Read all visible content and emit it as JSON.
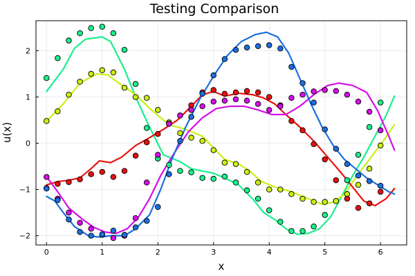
{
  "chart_data": {
    "type": "line",
    "title": "Testing Comparison",
    "xlabel": "x",
    "ylabel": "u(x)",
    "xlim": [
      -0.19,
      6.47
    ],
    "ylim": [
      -2.2,
      2.65
    ],
    "xticks": [
      0,
      1,
      2,
      3,
      4,
      5,
      6
    ],
    "yticks": [
      -2,
      -1,
      0,
      1,
      2
    ],
    "grid": true,
    "legend": "none",
    "colors": {
      "blue": "#1a6fe0",
      "red": "#e8100e",
      "magenta": "#d60ee8",
      "green": "#18f08a",
      "yellow": "#c8f010"
    },
    "series": [
      {
        "color_key": "green",
        "kind": "line",
        "points": [
          [
            0,
            1.12
          ],
          [
            0.3,
            1.6
          ],
          [
            0.5,
            2.05
          ],
          [
            0.7,
            2.25
          ],
          [
            1.0,
            2.3
          ],
          [
            1.15,
            2.2
          ],
          [
            1.4,
            1.6
          ],
          [
            1.6,
            1.0
          ],
          [
            1.85,
            0.35
          ],
          [
            2.1,
            -0.25
          ],
          [
            2.4,
            -0.4
          ],
          [
            2.6,
            -0.55
          ],
          [
            2.8,
            -0.6
          ],
          [
            3.0,
            -0.65
          ],
          [
            3.2,
            -0.75
          ],
          [
            3.45,
            -0.9
          ],
          [
            3.7,
            -1.2
          ],
          [
            3.9,
            -1.5
          ],
          [
            4.1,
            -1.65
          ],
          [
            4.3,
            -1.85
          ],
          [
            4.5,
            -1.97
          ],
          [
            4.7,
            -1.95
          ],
          [
            4.9,
            -1.85
          ],
          [
            5.1,
            -1.6
          ],
          [
            5.3,
            -1.15
          ],
          [
            5.5,
            -0.7
          ],
          [
            5.7,
            -0.3
          ],
          [
            5.9,
            0.15
          ],
          [
            6.1,
            0.6
          ],
          [
            6.25,
            1.02
          ]
        ]
      },
      {
        "color_key": "yellow",
        "kind": "line",
        "points": [
          [
            0,
            0.48
          ],
          [
            0.3,
            0.85
          ],
          [
            0.6,
            1.3
          ],
          [
            0.9,
            1.5
          ],
          [
            1.1,
            1.48
          ],
          [
            1.3,
            1.3
          ],
          [
            1.6,
            1.05
          ],
          [
            1.9,
            0.7
          ],
          [
            2.2,
            0.4
          ],
          [
            2.5,
            0.3
          ],
          [
            2.8,
            0.15
          ],
          [
            3.0,
            -0.1
          ],
          [
            3.2,
            -0.35
          ],
          [
            3.45,
            -0.45
          ],
          [
            3.65,
            -0.6
          ],
          [
            3.85,
            -0.82
          ],
          [
            4.1,
            -0.95
          ],
          [
            4.4,
            -1.05
          ],
          [
            4.7,
            -1.2
          ],
          [
            4.95,
            -1.32
          ],
          [
            5.15,
            -1.28
          ],
          [
            5.35,
            -1.1
          ],
          [
            5.55,
            -0.75
          ],
          [
            5.8,
            -0.35
          ],
          [
            6.05,
            0.05
          ],
          [
            6.25,
            0.4
          ]
        ]
      },
      {
        "color_key": "red",
        "kind": "line",
        "points": [
          [
            0,
            -0.9
          ],
          [
            0.2,
            -0.83
          ],
          [
            0.4,
            -0.8
          ],
          [
            0.6,
            -0.75
          ],
          [
            0.8,
            -0.55
          ],
          [
            0.95,
            -0.38
          ],
          [
            1.15,
            -0.42
          ],
          [
            1.35,
            -0.3
          ],
          [
            1.6,
            -0.05
          ],
          [
            1.85,
            0.12
          ],
          [
            2.1,
            0.3
          ],
          [
            2.35,
            0.5
          ],
          [
            2.6,
            0.8
          ],
          [
            2.8,
            1.05
          ],
          [
            3.0,
            1.12
          ],
          [
            3.2,
            1.02
          ],
          [
            3.45,
            1.08
          ],
          [
            3.7,
            1.05
          ],
          [
            3.9,
            0.98
          ],
          [
            4.1,
            0.85
          ],
          [
            4.3,
            0.62
          ],
          [
            4.55,
            0.35
          ],
          [
            4.8,
            0.05
          ],
          [
            5.05,
            -0.3
          ],
          [
            5.3,
            -0.65
          ],
          [
            5.5,
            -0.95
          ],
          [
            5.7,
            -1.25
          ],
          [
            5.9,
            -1.35
          ],
          [
            6.1,
            -1.2
          ],
          [
            6.25,
            -0.98
          ]
        ]
      },
      {
        "color_key": "magenta",
        "kind": "line",
        "points": [
          [
            0,
            -0.72
          ],
          [
            0.2,
            -1.05
          ],
          [
            0.4,
            -1.4
          ],
          [
            0.65,
            -1.65
          ],
          [
            0.85,
            -1.82
          ],
          [
            1.05,
            -1.92
          ],
          [
            1.25,
            -1.95
          ],
          [
            1.45,
            -1.85
          ],
          [
            1.65,
            -1.6
          ],
          [
            1.85,
            -1.2
          ],
          [
            2.05,
            -0.7
          ],
          [
            2.3,
            -0.2
          ],
          [
            2.55,
            0.25
          ],
          [
            2.8,
            0.55
          ],
          [
            3.05,
            0.75
          ],
          [
            3.3,
            0.8
          ],
          [
            3.55,
            0.8
          ],
          [
            3.8,
            0.72
          ],
          [
            4.05,
            0.62
          ],
          [
            4.3,
            0.62
          ],
          [
            4.55,
            0.8
          ],
          [
            4.8,
            1.05
          ],
          [
            5.05,
            1.25
          ],
          [
            5.25,
            1.3
          ],
          [
            5.5,
            1.25
          ],
          [
            5.75,
            1.1
          ],
          [
            5.95,
            0.7
          ],
          [
            6.15,
            0.15
          ],
          [
            6.25,
            -0.15
          ]
        ]
      },
      {
        "color_key": "blue",
        "kind": "line",
        "points": [
          [
            0,
            -1.15
          ],
          [
            0.15,
            -1.25
          ],
          [
            0.3,
            -1.5
          ],
          [
            0.5,
            -1.8
          ],
          [
            0.75,
            -2.0
          ],
          [
            0.95,
            -2.03
          ],
          [
            1.15,
            -2.0
          ],
          [
            1.4,
            -2.0
          ],
          [
            1.6,
            -1.85
          ],
          [
            1.85,
            -1.55
          ],
          [
            2.05,
            -1.0
          ],
          [
            2.25,
            -0.35
          ],
          [
            2.5,
            0.35
          ],
          [
            2.75,
            0.95
          ],
          [
            3.0,
            1.45
          ],
          [
            3.25,
            1.9
          ],
          [
            3.5,
            2.2
          ],
          [
            3.75,
            2.35
          ],
          [
            3.95,
            2.4
          ],
          [
            4.15,
            2.3
          ],
          [
            4.35,
            1.95
          ],
          [
            4.55,
            1.4
          ],
          [
            4.75,
            0.85
          ],
          [
            4.95,
            0.35
          ],
          [
            5.15,
            -0.05
          ],
          [
            5.35,
            -0.35
          ],
          [
            5.55,
            -0.55
          ],
          [
            5.75,
            -0.75
          ],
          [
            5.95,
            -0.9
          ],
          [
            6.15,
            -1.05
          ],
          [
            6.25,
            -1.1
          ]
        ]
      },
      {
        "color_key": "green",
        "kind": "scatter",
        "points": [
          [
            0,
            1.41
          ],
          [
            0.2,
            1.84
          ],
          [
            0.4,
            2.22
          ],
          [
            0.6,
            2.38
          ],
          [
            0.8,
            2.49
          ],
          [
            1.0,
            2.52
          ],
          [
            1.2,
            2.38
          ],
          [
            1.4,
            2.02
          ],
          [
            1.6,
            1.28
          ],
          [
            1.8,
            0.33
          ],
          [
            2.0,
            -0.33
          ],
          [
            2.2,
            -0.47
          ],
          [
            2.4,
            -0.6
          ],
          [
            2.6,
            -0.63
          ],
          [
            2.8,
            -0.75
          ],
          [
            3.0,
            -0.77
          ],
          [
            3.2,
            -0.72
          ],
          [
            3.4,
            -0.85
          ],
          [
            3.6,
            -1.02
          ],
          [
            3.8,
            -1.2
          ],
          [
            4.0,
            -1.45
          ],
          [
            4.2,
            -1.7
          ],
          [
            4.4,
            -1.9
          ],
          [
            4.6,
            -1.9
          ],
          [
            4.8,
            -1.8
          ],
          [
            5.0,
            -1.55
          ],
          [
            5.2,
            -1.25
          ],
          [
            5.4,
            -0.8
          ],
          [
            5.6,
            -0.25
          ],
          [
            5.8,
            0.35
          ],
          [
            6.0,
            0.88
          ]
        ]
      },
      {
        "color_key": "yellow",
        "kind": "scatter",
        "points": [
          [
            0,
            0.48
          ],
          [
            0.2,
            0.69
          ],
          [
            0.4,
            1.05
          ],
          [
            0.6,
            1.33
          ],
          [
            0.8,
            1.5
          ],
          [
            1.0,
            1.58
          ],
          [
            1.2,
            1.53
          ],
          [
            1.4,
            1.2
          ],
          [
            1.6,
            1.0
          ],
          [
            1.8,
            0.98
          ],
          [
            2.0,
            0.72
          ],
          [
            2.2,
            0.45
          ],
          [
            2.4,
            0.22
          ],
          [
            2.6,
            0.12
          ],
          [
            2.8,
            0.05
          ],
          [
            3.0,
            -0.15
          ],
          [
            3.2,
            -0.42
          ],
          [
            3.4,
            -0.45
          ],
          [
            3.6,
            -0.62
          ],
          [
            3.8,
            -0.85
          ],
          [
            4.0,
            -1.0
          ],
          [
            4.2,
            -1.0
          ],
          [
            4.4,
            -1.1
          ],
          [
            4.6,
            -1.2
          ],
          [
            4.8,
            -1.27
          ],
          [
            5.0,
            -1.27
          ],
          [
            5.2,
            -1.25
          ],
          [
            5.4,
            -1.1
          ],
          [
            5.6,
            -0.9
          ],
          [
            5.8,
            -0.55
          ],
          [
            6.0,
            -0.05
          ]
        ]
      },
      {
        "color_key": "red",
        "kind": "scatter",
        "points": [
          [
            0,
            -0.97
          ],
          [
            0.2,
            -0.88
          ],
          [
            0.4,
            -0.84
          ],
          [
            0.6,
            -0.78
          ],
          [
            0.8,
            -0.67
          ],
          [
            1.0,
            -0.62
          ],
          [
            1.2,
            -0.73
          ],
          [
            1.4,
            -0.6
          ],
          [
            1.6,
            -0.27
          ],
          [
            1.8,
            0.02
          ],
          [
            2.0,
            0.2
          ],
          [
            2.2,
            0.42
          ],
          [
            2.4,
            0.6
          ],
          [
            2.6,
            0.82
          ],
          [
            2.8,
            1.1
          ],
          [
            3.0,
            1.15
          ],
          [
            3.2,
            1.07
          ],
          [
            3.4,
            1.1
          ],
          [
            3.6,
            1.13
          ],
          [
            3.8,
            1.1
          ],
          [
            4.0,
            1.0
          ],
          [
            4.2,
            0.82
          ],
          [
            4.4,
            0.48
          ],
          [
            4.6,
            0.28
          ],
          [
            4.8,
            -0.02
          ],
          [
            5.0,
            -0.35
          ],
          [
            5.2,
            -0.8
          ],
          [
            5.4,
            -1.2
          ],
          [
            5.6,
            -1.4
          ],
          [
            5.8,
            -1.3
          ],
          [
            6.0,
            -1.05
          ]
        ]
      },
      {
        "color_key": "magenta",
        "kind": "scatter",
        "points": [
          [
            0,
            -0.73
          ],
          [
            0.2,
            -1.2
          ],
          [
            0.4,
            -1.5
          ],
          [
            0.6,
            -1.72
          ],
          [
            0.8,
            -1.85
          ],
          [
            1.0,
            -1.98
          ],
          [
            1.2,
            -2.05
          ],
          [
            1.4,
            -2.0
          ],
          [
            1.6,
            -1.62
          ],
          [
            1.8,
            -0.85
          ],
          [
            2.0,
            -0.25
          ],
          [
            2.2,
            0.42
          ],
          [
            2.4,
            0.6
          ],
          [
            2.6,
            0.72
          ],
          [
            2.8,
            0.8
          ],
          [
            3.0,
            0.9
          ],
          [
            3.2,
            0.92
          ],
          [
            3.4,
            0.95
          ],
          [
            3.6,
            0.92
          ],
          [
            3.8,
            0.85
          ],
          [
            4.0,
            0.72
          ],
          [
            4.2,
            0.8
          ],
          [
            4.4,
            0.98
          ],
          [
            4.6,
            1.05
          ],
          [
            4.8,
            1.12
          ],
          [
            5.0,
            1.15
          ],
          [
            5.2,
            1.13
          ],
          [
            5.4,
            1.05
          ],
          [
            5.6,
            0.9
          ],
          [
            5.8,
            0.68
          ],
          [
            6.0,
            0.28
          ]
        ]
      },
      {
        "color_key": "blue",
        "kind": "scatter",
        "points": [
          [
            0,
            -0.98
          ],
          [
            0.2,
            -1.23
          ],
          [
            0.4,
            -1.65
          ],
          [
            0.6,
            -1.92
          ],
          [
            0.8,
            -2.0
          ],
          [
            1.0,
            -1.97
          ],
          [
            1.2,
            -1.89
          ],
          [
            1.4,
            -1.98
          ],
          [
            1.6,
            -1.82
          ],
          [
            1.8,
            -1.68
          ],
          [
            2.0,
            -1.38
          ],
          [
            2.2,
            -0.67
          ],
          [
            2.4,
            0.05
          ],
          [
            2.6,
            0.57
          ],
          [
            2.8,
            1.07
          ],
          [
            3.0,
            1.47
          ],
          [
            3.2,
            1.82
          ],
          [
            3.4,
            2.02
          ],
          [
            3.6,
            2.07
          ],
          [
            3.8,
            2.1
          ],
          [
            4.0,
            2.12
          ],
          [
            4.2,
            2.05
          ],
          [
            4.4,
            1.65
          ],
          [
            4.6,
            1.3
          ],
          [
            4.8,
            0.88
          ],
          [
            5.0,
            0.3
          ],
          [
            5.2,
            -0.12
          ],
          [
            5.4,
            -0.45
          ],
          [
            5.6,
            -0.7
          ],
          [
            5.8,
            -0.82
          ],
          [
            6.0,
            -0.92
          ]
        ]
      }
    ]
  }
}
